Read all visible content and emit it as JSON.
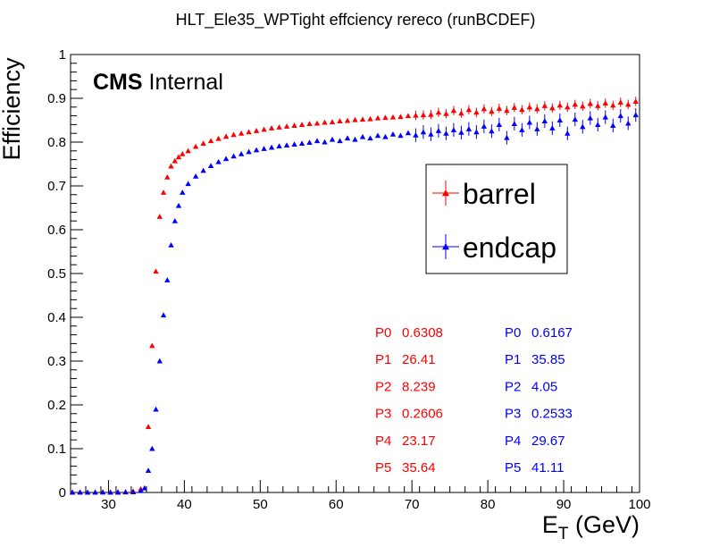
{
  "chart_data": {
    "type": "scatter",
    "title": "HLT_Ele35_WPTight effciency  rereco (runBCDEF)",
    "ylabel": "Efficiency",
    "xlabel_main": "E",
    "xlabel_sub": "T",
    "xlabel_unit": " (GeV)",
    "xlim": [
      25,
      100
    ],
    "ylim": [
      0,
      1
    ],
    "x_ticks": [
      30,
      40,
      50,
      60,
      70,
      80,
      90,
      100
    ],
    "y_ticks": [
      0,
      0.1,
      0.2,
      0.3,
      0.4,
      0.5,
      0.6,
      0.7,
      0.8,
      0.9,
      1
    ],
    "y_tick_labels": [
      "0",
      "0.1",
      "0.2",
      "0.3",
      "0.4",
      "0.5",
      "0.6",
      "0.7",
      "0.8",
      "0.9",
      "1"
    ],
    "annotation_bold": "CMS",
    "annotation_text": " Internal",
    "legend_placement": "right",
    "series": [
      {
        "name": "barrel",
        "color": "#ff0000",
        "marker": "triangle",
        "points": [
          [
            25.25,
            0.0005
          ],
          [
            26.25,
            0.0008
          ],
          [
            27.25,
            0.0004
          ],
          [
            28.25,
            0.0006
          ],
          [
            29.25,
            0.0009
          ],
          [
            30.25,
            0.0007
          ],
          [
            31.25,
            0.001
          ],
          [
            32.25,
            0.0015
          ],
          [
            33.25,
            0.003
          ],
          [
            34.25,
            0.008
          ],
          [
            35.25,
            0.15
          ],
          [
            35.75,
            0.335
          ],
          [
            36.25,
            0.505
          ],
          [
            36.75,
            0.63
          ],
          [
            37.25,
            0.685
          ],
          [
            37.75,
            0.72
          ],
          [
            38.25,
            0.745
          ],
          [
            38.75,
            0.757
          ],
          [
            39.25,
            0.766
          ],
          [
            39.75,
            0.773
          ],
          [
            40.5,
            0.78
          ],
          [
            41.5,
            0.79
          ],
          [
            42.5,
            0.797
          ],
          [
            43.5,
            0.803
          ],
          [
            44.5,
            0.808
          ],
          [
            45.5,
            0.813
          ],
          [
            46.5,
            0.817
          ],
          [
            47.5,
            0.82
          ],
          [
            48.5,
            0.823
          ],
          [
            49.5,
            0.826
          ],
          [
            50.5,
            0.829
          ],
          [
            51.5,
            0.832
          ],
          [
            52.5,
            0.834
          ],
          [
            53.5,
            0.836
          ],
          [
            54.5,
            0.838
          ],
          [
            55.5,
            0.84
          ],
          [
            56.5,
            0.842
          ],
          [
            57.5,
            0.843
          ],
          [
            58.5,
            0.845
          ],
          [
            59.5,
            0.846
          ],
          [
            60.5,
            0.848
          ],
          [
            61.5,
            0.849
          ],
          [
            62.5,
            0.851
          ],
          [
            63.5,
            0.852
          ],
          [
            64.5,
            0.853
          ],
          [
            65.5,
            0.855
          ],
          [
            66.5,
            0.856
          ],
          [
            67.5,
            0.857
          ],
          [
            68.5,
            0.858
          ],
          [
            69.5,
            0.86
          ],
          [
            70.5,
            0.861
          ],
          [
            71.5,
            0.862
          ],
          [
            72.5,
            0.863
          ],
          [
            73.5,
            0.868
          ],
          [
            74.5,
            0.865
          ],
          [
            75.5,
            0.872
          ],
          [
            76.5,
            0.866
          ],
          [
            77.5,
            0.874
          ],
          [
            78.5,
            0.868
          ],
          [
            79.5,
            0.876
          ],
          [
            80.5,
            0.87
          ],
          [
            81.5,
            0.877
          ],
          [
            82.5,
            0.872
          ],
          [
            83.5,
            0.879
          ],
          [
            84.5,
            0.874
          ],
          [
            85.5,
            0.88
          ],
          [
            86.5,
            0.876
          ],
          [
            87.5,
            0.883
          ],
          [
            88.5,
            0.878
          ],
          [
            89.5,
            0.884
          ],
          [
            90.5,
            0.88
          ],
          [
            91.5,
            0.886
          ],
          [
            92.5,
            0.882
          ],
          [
            93.5,
            0.888
          ],
          [
            94.5,
            0.883
          ],
          [
            95.5,
            0.889
          ],
          [
            96.5,
            0.884
          ],
          [
            97.5,
            0.891
          ],
          [
            98.5,
            0.886
          ],
          [
            99.5,
            0.893
          ]
        ],
        "params": [
          {
            "name": "P0",
            "value": "0.6308"
          },
          {
            "name": "P1",
            "value": "26.41"
          },
          {
            "name": "P2",
            "value": "8.239"
          },
          {
            "name": "P3",
            "value": "0.2606"
          },
          {
            "name": "P4",
            "value": "23.17"
          },
          {
            "name": "P5",
            "value": "35.64"
          }
        ]
      },
      {
        "name": "endcap",
        "color": "#0000ff",
        "marker": "triangle",
        "points": [
          [
            25.25,
            0.0004
          ],
          [
            26.25,
            0.0005
          ],
          [
            27.25,
            0.0003
          ],
          [
            28.25,
            0.0005
          ],
          [
            29.25,
            0.0006
          ],
          [
            30.25,
            0.0004
          ],
          [
            31.25,
            0.0005
          ],
          [
            32.25,
            0.0008
          ],
          [
            33.25,
            0.0012
          ],
          [
            34.25,
            0.004
          ],
          [
            34.75,
            0.01
          ],
          [
            35.25,
            0.05
          ],
          [
            35.75,
            0.1
          ],
          [
            36.25,
            0.19
          ],
          [
            36.75,
            0.3
          ],
          [
            37.25,
            0.405
          ],
          [
            37.75,
            0.485
          ],
          [
            38.25,
            0.565
          ],
          [
            38.75,
            0.62
          ],
          [
            39.25,
            0.655
          ],
          [
            39.75,
            0.685
          ],
          [
            40.5,
            0.705
          ],
          [
            41.5,
            0.722
          ],
          [
            42.5,
            0.735
          ],
          [
            43.5,
            0.746
          ],
          [
            44.5,
            0.755
          ],
          [
            45.5,
            0.762
          ],
          [
            46.5,
            0.768
          ],
          [
            47.5,
            0.773
          ],
          [
            48.5,
            0.778
          ],
          [
            49.5,
            0.782
          ],
          [
            50.5,
            0.785
          ],
          [
            51.5,
            0.788
          ],
          [
            52.5,
            0.791
          ],
          [
            53.5,
            0.793
          ],
          [
            54.5,
            0.795
          ],
          [
            55.5,
            0.797
          ],
          [
            56.5,
            0.799
          ],
          [
            57.5,
            0.803
          ],
          [
            58.5,
            0.8
          ],
          [
            59.5,
            0.806
          ],
          [
            60.5,
            0.803
          ],
          [
            61.5,
            0.809
          ],
          [
            62.5,
            0.806
          ],
          [
            63.5,
            0.812
          ],
          [
            64.5,
            0.809
          ],
          [
            65.5,
            0.815
          ],
          [
            66.5,
            0.812
          ],
          [
            67.5,
            0.818
          ],
          [
            68.5,
            0.815
          ],
          [
            69.5,
            0.821
          ],
          [
            70.5,
            0.816
          ],
          [
            71.5,
            0.823
          ],
          [
            72.5,
            0.818
          ],
          [
            73.5,
            0.826
          ],
          [
            74.5,
            0.82
          ],
          [
            75.5,
            0.828
          ],
          [
            76.5,
            0.822
          ],
          [
            77.5,
            0.83
          ],
          [
            78.5,
            0.823
          ],
          [
            79.5,
            0.836
          ],
          [
            80.5,
            0.825
          ],
          [
            81.5,
            0.84
          ],
          [
            82.5,
            0.81
          ],
          [
            83.5,
            0.842
          ],
          [
            84.5,
            0.828
          ],
          [
            85.5,
            0.845
          ],
          [
            86.5,
            0.83
          ],
          [
            87.5,
            0.848
          ],
          [
            88.5,
            0.832
          ],
          [
            89.5,
            0.85
          ],
          [
            90.5,
            0.82
          ],
          [
            91.5,
            0.852
          ],
          [
            92.5,
            0.835
          ],
          [
            93.5,
            0.855
          ],
          [
            94.5,
            0.84
          ],
          [
            95.5,
            0.857
          ],
          [
            96.5,
            0.838
          ],
          [
            97.5,
            0.86
          ],
          [
            98.5,
            0.843
          ],
          [
            99.5,
            0.862
          ]
        ],
        "params": [
          {
            "name": "P0",
            "value": "0.6167"
          },
          {
            "name": "P1",
            "value": "35.85"
          },
          {
            "name": "P2",
            "value": "4.05"
          },
          {
            "name": "P3",
            "value": "0.2533"
          },
          {
            "name": "P4",
            "value": "29.67"
          },
          {
            "name": "P5",
            "value": "41.11"
          }
        ]
      }
    ]
  }
}
